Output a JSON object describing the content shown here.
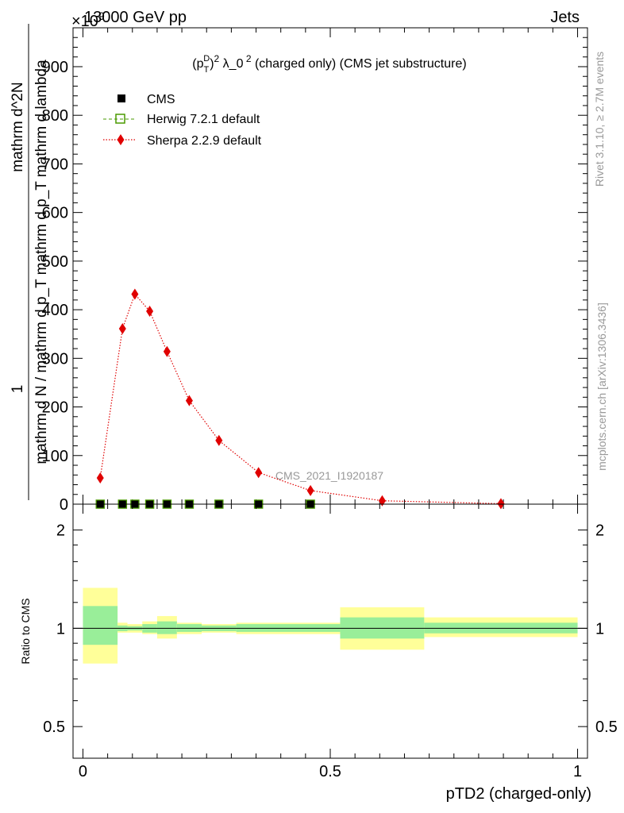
{
  "header": {
    "left": "13000 GeV pp",
    "right": "Jets",
    "multiplier": "×10",
    "multiplier_exp": "9"
  },
  "side_labels": {
    "rivet": "Rivet 3.1.10, ≥ 2.7M events",
    "mcplots": "mcplots.cern.ch [arXiv:1306.3436]"
  },
  "watermark": "CMS_2021_I1920187",
  "chart_data": [
    {
      "type": "line",
      "title": "(p_T^D)^2 λ_0^2 (charged only) (CMS jet substructure)",
      "ylabel": "1 / mathrm d N / mathrm d p_T mathrm d p_T mathrm d lambda mathrm d^2N",
      "ylim": [
        0,
        980
      ],
      "xlim": [
        -0.02,
        1.02
      ],
      "y_ticks": [
        0,
        100,
        200,
        300,
        400,
        500,
        600,
        700,
        800,
        900
      ],
      "y_multiplier": "×10^9",
      "grid": false,
      "legend_position": "top-left",
      "series": [
        {
          "name": "CMS",
          "marker": "filled-square",
          "color": "#000000",
          "x": [
            0.035,
            0.08,
            0.105,
            0.135,
            0.17,
            0.215,
            0.275,
            0.355,
            0.46
          ],
          "y": [
            0,
            0,
            0,
            0,
            0,
            0,
            0,
            0,
            0
          ]
        },
        {
          "name": "Herwig 7.2.1 default",
          "marker": "open-square",
          "style": "dashed",
          "color": "#4a9a00",
          "x": [
            0.035,
            0.08,
            0.105,
            0.135,
            0.17,
            0.215,
            0.275,
            0.355,
            0.46
          ],
          "y": [
            0,
            0,
            0,
            0,
            0,
            0,
            0,
            0,
            0
          ]
        },
        {
          "name": "Sherpa 2.2.9 default",
          "marker": "diamond",
          "style": "dotted",
          "color": "#e00000",
          "x": [
            0.035,
            0.08,
            0.105,
            0.135,
            0.17,
            0.215,
            0.275,
            0.355,
            0.46,
            0.605,
            0.845
          ],
          "y": [
            54,
            361,
            432,
            397,
            314,
            213,
            131,
            65,
            28,
            7,
            1
          ]
        }
      ]
    },
    {
      "type": "area",
      "xlabel": "pTD2 (charged-only)",
      "ylabel": "Ratio to CMS",
      "y_scale": "log",
      "ylim": [
        0.4,
        2.4
      ],
      "xlim": [
        -0.02,
        1.02
      ],
      "y_ticks": [
        0.5,
        1,
        2
      ],
      "y_tick_labels": [
        "0.5",
        "1",
        "2"
      ],
      "x_ticks": [
        0,
        0.5,
        1
      ],
      "x_tick_labels": [
        "0",
        "0.5",
        "1"
      ],
      "reference_line": 1,
      "bands": [
        {
          "x0": 0.0,
          "x1": 0.07,
          "stat_lo": 0.89,
          "stat_hi": 1.17,
          "tot_lo": 0.78,
          "tot_hi": 1.33
        },
        {
          "x0": 0.07,
          "x1": 0.09,
          "stat_lo": 0.98,
          "stat_hi": 1.02,
          "tot_lo": 0.97,
          "tot_hi": 1.04
        },
        {
          "x0": 0.09,
          "x1": 0.12,
          "stat_lo": 0.985,
          "stat_hi": 1.015,
          "tot_lo": 0.97,
          "tot_hi": 1.03
        },
        {
          "x0": 0.12,
          "x1": 0.15,
          "stat_lo": 0.97,
          "stat_hi": 1.03,
          "tot_lo": 0.96,
          "tot_hi": 1.05
        },
        {
          "x0": 0.15,
          "x1": 0.19,
          "stat_lo": 0.96,
          "stat_hi": 1.05,
          "tot_lo": 0.93,
          "tot_hi": 1.09
        },
        {
          "x0": 0.19,
          "x1": 0.24,
          "stat_lo": 0.975,
          "stat_hi": 1.03,
          "tot_lo": 0.96,
          "tot_hi": 1.04
        },
        {
          "x0": 0.24,
          "x1": 0.31,
          "stat_lo": 0.98,
          "stat_hi": 1.02,
          "tot_lo": 0.97,
          "tot_hi": 1.03
        },
        {
          "x0": 0.31,
          "x1": 0.52,
          "stat_lo": 0.975,
          "stat_hi": 1.03,
          "tot_lo": 0.96,
          "tot_hi": 1.04
        },
        {
          "x0": 0.52,
          "x1": 0.69,
          "stat_lo": 0.93,
          "stat_hi": 1.08,
          "tot_lo": 0.86,
          "tot_hi": 1.16
        },
        {
          "x0": 0.69,
          "x1": 1.0,
          "stat_lo": 0.965,
          "stat_hi": 1.04,
          "tot_lo": 0.94,
          "tot_hi": 1.08
        }
      ],
      "band_colors": {
        "stat": "#99ee99",
        "total": "#ffff99"
      }
    }
  ]
}
